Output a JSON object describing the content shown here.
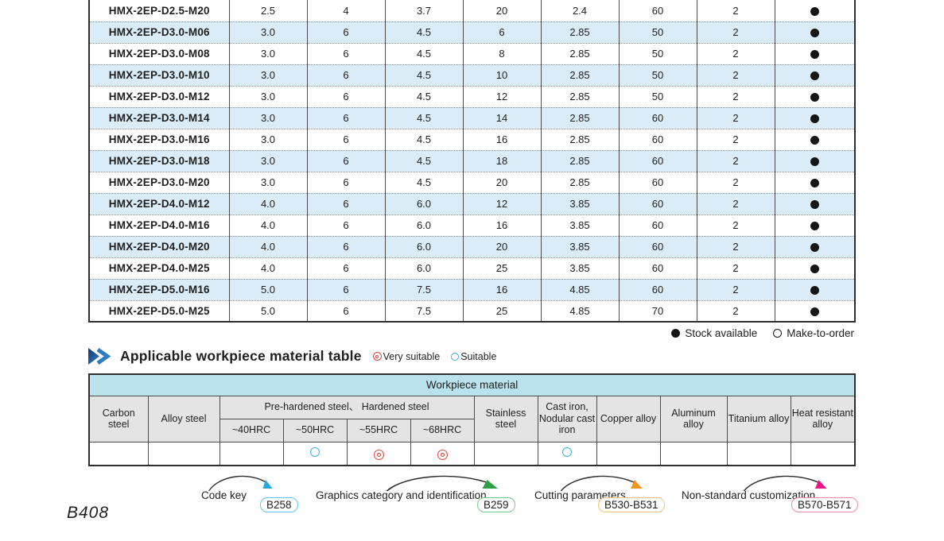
{
  "page": {
    "number": "B408"
  },
  "colors": {
    "row_alt": "#d9ecf7",
    "table_border": "#4d4d4d",
    "outer_border": "#2e2e2e",
    "header_cyan": "#b9e2ed",
    "header_gray": "#e4e4e4",
    "very_suitable": "#e8413c",
    "suitable": "#35b0e0",
    "text": "#1f1f1f"
  },
  "spec_table": {
    "rows": [
      {
        "model": "HMX-2EP-D2.5-M20",
        "values": [
          "2.5",
          "4",
          "3.7",
          "20",
          "2.4",
          "60",
          "2"
        ],
        "stock": "available"
      },
      {
        "model": "HMX-2EP-D3.0-M06",
        "values": [
          "3.0",
          "6",
          "4.5",
          "6",
          "2.85",
          "50",
          "2"
        ],
        "stock": "available"
      },
      {
        "model": "HMX-2EP-D3.0-M08",
        "values": [
          "3.0",
          "6",
          "4.5",
          "8",
          "2.85",
          "50",
          "2"
        ],
        "stock": "available"
      },
      {
        "model": "HMX-2EP-D3.0-M10",
        "values": [
          "3.0",
          "6",
          "4.5",
          "10",
          "2.85",
          "50",
          "2"
        ],
        "stock": "available"
      },
      {
        "model": "HMX-2EP-D3.0-M12",
        "values": [
          "3.0",
          "6",
          "4.5",
          "12",
          "2.85",
          "50",
          "2"
        ],
        "stock": "available"
      },
      {
        "model": "HMX-2EP-D3.0-M14",
        "values": [
          "3.0",
          "6",
          "4.5",
          "14",
          "2.85",
          "60",
          "2"
        ],
        "stock": "available"
      },
      {
        "model": "HMX-2EP-D3.0-M16",
        "values": [
          "3.0",
          "6",
          "4.5",
          "16",
          "2.85",
          "60",
          "2"
        ],
        "stock": "available"
      },
      {
        "model": "HMX-2EP-D3.0-M18",
        "values": [
          "3.0",
          "6",
          "4.5",
          "18",
          "2.85",
          "60",
          "2"
        ],
        "stock": "available"
      },
      {
        "model": "HMX-2EP-D3.0-M20",
        "values": [
          "3.0",
          "6",
          "4.5",
          "20",
          "2.85",
          "60",
          "2"
        ],
        "stock": "available"
      },
      {
        "model": "HMX-2EP-D4.0-M12",
        "values": [
          "4.0",
          "6",
          "6.0",
          "12",
          "3.85",
          "60",
          "2"
        ],
        "stock": "available"
      },
      {
        "model": "HMX-2EP-D4.0-M16",
        "values": [
          "4.0",
          "6",
          "6.0",
          "16",
          "3.85",
          "60",
          "2"
        ],
        "stock": "available"
      },
      {
        "model": "HMX-2EP-D4.0-M20",
        "values": [
          "4.0",
          "6",
          "6.0",
          "20",
          "3.85",
          "60",
          "2"
        ],
        "stock": "available"
      },
      {
        "model": "HMX-2EP-D4.0-M25",
        "values": [
          "4.0",
          "6",
          "6.0",
          "25",
          "3.85",
          "60",
          "2"
        ],
        "stock": "available"
      },
      {
        "model": "HMX-2EP-D5.0-M16",
        "values": [
          "5.0",
          "6",
          "7.5",
          "16",
          "4.85",
          "60",
          "2"
        ],
        "stock": "available"
      },
      {
        "model": "HMX-2EP-D5.0-M25",
        "values": [
          "5.0",
          "6",
          "7.5",
          "25",
          "4.85",
          "70",
          "2"
        ],
        "stock": "available"
      }
    ],
    "stock_legend": {
      "available_label": "Stock available",
      "make_to_order_label": "Make-to-order"
    }
  },
  "material_section": {
    "title": "Applicable workpiece material table",
    "legend": {
      "very_suitable": "Very suitable",
      "suitable": "Suitable"
    },
    "table": {
      "title": "Workpiece material",
      "headers": {
        "carbon": "Carbon steel",
        "alloy": "Alloy steel",
        "prehardened_group": "Pre-hardened steel、 Hardened steel",
        "hrc": [
          "~40HRC",
          "~50HRC",
          "~55HRC",
          "~68HRC"
        ],
        "stainless": "Stainless steel",
        "cast_iron": "Cast iron, Nodular cast iron",
        "copper": "Copper alloy",
        "aluminum": "Aluminum alloy",
        "titanium": "Titanium alloy",
        "heat_resistant": "Heat resistant alloy"
      },
      "ratings": [
        "",
        "",
        "",
        "suitable",
        "very_suitable",
        "very_suitable",
        "",
        "suitable",
        "",
        "",
        "",
        ""
      ]
    }
  },
  "footer_refs": [
    {
      "label": "Code key",
      "page": "B258",
      "badge_color": "#5ec8e8",
      "arrow_color": "#29a8dc"
    },
    {
      "label": "Graphics category and identification",
      "page": "B259",
      "badge_color": "#79c98b",
      "arrow_color": "#2f9e44"
    },
    {
      "label": "Cutting parameters",
      "page": "B530-B531",
      "badge_color": "#f8c07d",
      "arrow_color": "#f6921e"
    },
    {
      "label": "Non-standard customization",
      "page": "B570-B571",
      "badge_color": "#f287b4",
      "arrow_color": "#ec168a"
    }
  ]
}
